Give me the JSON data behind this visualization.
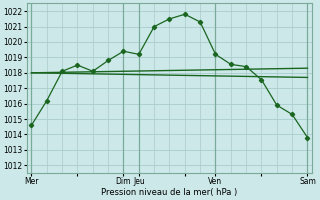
{
  "bg_color": "#cce8e8",
  "grid_color": "#aacccc",
  "line_color": "#1a6620",
  "x_tick_labels": [
    "Mer",
    "",
    "Dim",
    "Jeu",
    "",
    "Ven",
    "",
    "Sam"
  ],
  "x_tick_pos": [
    0,
    3,
    6,
    7,
    10,
    12,
    15,
    18
  ],
  "yticks": [
    1012,
    1013,
    1014,
    1015,
    1016,
    1017,
    1018,
    1019,
    1020,
    1021,
    1022
  ],
  "ylim": [
    1011.5,
    1022.5
  ],
  "xlabel": "Pression niveau de la mer( hPa )",
  "series1_x": [
    0,
    1,
    2,
    3,
    4,
    5,
    6,
    7,
    8,
    9,
    10,
    11,
    12,
    13,
    14,
    15,
    16,
    17,
    18
  ],
  "series1_y": [
    1014.6,
    1016.2,
    1018.1,
    1018.5,
    1018.1,
    1018.8,
    1019.4,
    1019.2,
    1021.0,
    1021.5,
    1021.8,
    1021.3,
    1019.2,
    1018.55,
    1018.4,
    1017.55,
    1015.9,
    1015.3,
    1013.8
  ],
  "series2_x": [
    0,
    18
  ],
  "series2_y": [
    1018.0,
    1017.7
  ],
  "series3_x": [
    0,
    18
  ],
  "series3_y": [
    1018.0,
    1018.3
  ],
  "vlines_x": [
    0,
    6,
    7,
    12,
    18
  ],
  "xlim": [
    -0.3,
    18.3
  ]
}
